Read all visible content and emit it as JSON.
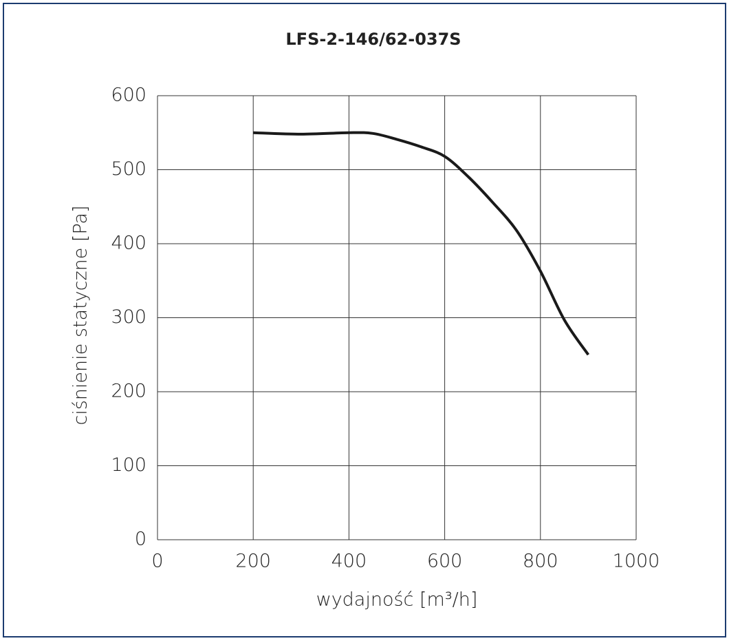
{
  "chart_data": {
    "type": "line",
    "title": "LFS-2-146/62-037S",
    "x_label": "wydajność [m³/h]",
    "y_label": "ciśnienie statyczne [Pa]",
    "x": [
      200,
      300,
      400,
      450,
      500,
      550,
      600,
      650,
      700,
      750,
      800,
      850,
      900
    ],
    "series": [
      {
        "name": "LFS-2-146/62-037S",
        "color": "#1a1a1a",
        "values": [
          550,
          548,
          550,
          549,
          541,
          531,
          518,
          490,
          456,
          418,
          363,
          297,
          250
        ]
      }
    ],
    "xlim": [
      0,
      1000
    ],
    "xticks": [
      0,
      200,
      400,
      600,
      800,
      1000
    ],
    "ylim": [
      0,
      600
    ],
    "yticks": [
      0,
      100,
      200,
      300,
      400,
      500,
      600
    ],
    "grid": true
  }
}
